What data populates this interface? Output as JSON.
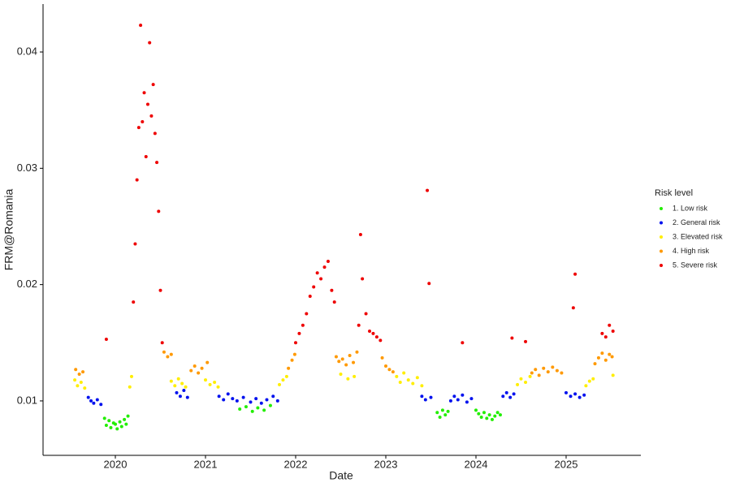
{
  "chart_data": {
    "type": "scatter",
    "x_label": "Date",
    "y_label": "FRM@Romania",
    "legend_title": "Risk level",
    "legend_position": "right",
    "grid": false,
    "xlim": [
      2019.198,
      2025.829
    ],
    "xticks": [
      2020,
      2021,
      2022,
      2023,
      2024,
      2025
    ],
    "ylim": [
      0.00532,
      0.04412
    ],
    "yticks": [
      0.01,
      0.02,
      0.03,
      0.04
    ],
    "series": [
      {
        "name": "1. Low risk",
        "color": "#22ee00",
        "x": [
          2019.88,
          2019.9,
          2019.93,
          2019.95,
          2019.98,
          2020.0,
          2020.02,
          2020.05,
          2020.07,
          2020.1,
          2020.12,
          2020.14,
          2021.38,
          2021.45,
          2021.52,
          2021.58,
          2021.65,
          2021.72,
          2023.57,
          2023.6,
          2023.63,
          2023.66,
          2023.69,
          2024.0,
          2024.03,
          2024.06,
          2024.09,
          2024.12,
          2024.15,
          2024.18,
          2024.21,
          2024.24,
          2024.27
        ],
        "values": [
          0.0085,
          0.0079,
          0.0083,
          0.0077,
          0.0081,
          0.008,
          0.0076,
          0.0082,
          0.0078,
          0.0084,
          0.008,
          0.0087,
          0.0093,
          0.0095,
          0.0091,
          0.0094,
          0.0092,
          0.0096,
          0.009,
          0.0086,
          0.0092,
          0.0088,
          0.0091,
          0.0092,
          0.0089,
          0.0086,
          0.009,
          0.0085,
          0.0088,
          0.0084,
          0.0087,
          0.009,
          0.0088
        ]
      },
      {
        "name": "2. General risk",
        "color": "#0011ee",
        "x": [
          2019.7,
          2019.73,
          2019.76,
          2019.8,
          2019.84,
          2020.68,
          2020.72,
          2020.76,
          2020.8,
          2021.15,
          2021.2,
          2021.25,
          2021.3,
          2021.35,
          2021.42,
          2021.5,
          2021.56,
          2021.62,
          2021.68,
          2021.75,
          2021.8,
          2023.4,
          2023.44,
          2023.5,
          2023.72,
          2023.76,
          2023.8,
          2023.85,
          2023.9,
          2023.95,
          2024.3,
          2024.34,
          2024.38,
          2024.42,
          2025.0,
          2025.05,
          2025.1,
          2025.15,
          2025.2
        ],
        "values": [
          0.0103,
          0.01,
          0.0098,
          0.0101,
          0.0097,
          0.0107,
          0.0104,
          0.0109,
          0.0103,
          0.0104,
          0.0101,
          0.0106,
          0.0102,
          0.01,
          0.0103,
          0.0099,
          0.0102,
          0.0098,
          0.0101,
          0.0104,
          0.01,
          0.0104,
          0.0101,
          0.0103,
          0.01,
          0.0104,
          0.0101,
          0.0105,
          0.0099,
          0.0102,
          0.0104,
          0.0107,
          0.0103,
          0.0106,
          0.0107,
          0.0104,
          0.0106,
          0.0103,
          0.0105
        ]
      },
      {
        "name": "3. Elevated risk",
        "color": "#ffee00",
        "x": [
          2019.55,
          2019.58,
          2019.62,
          2019.66,
          2020.16,
          2020.18,
          2020.62,
          2020.66,
          2020.7,
          2020.74,
          2020.78,
          2021.0,
          2021.05,
          2021.1,
          2021.14,
          2021.82,
          2021.86,
          2021.9,
          2022.5,
          2022.58,
          2022.65,
          2023.12,
          2023.16,
          2023.2,
          2023.25,
          2023.3,
          2023.35,
          2023.4,
          2024.46,
          2024.5,
          2024.55,
          2024.6,
          2025.22,
          2025.26,
          2025.3,
          2025.52
        ],
        "values": [
          0.0118,
          0.0113,
          0.0116,
          0.0111,
          0.0112,
          0.0121,
          0.0117,
          0.0113,
          0.0119,
          0.0115,
          0.0112,
          0.0118,
          0.0114,
          0.0116,
          0.0112,
          0.0114,
          0.0118,
          0.0121,
          0.0123,
          0.0119,
          0.0121,
          0.0121,
          0.0116,
          0.0124,
          0.0118,
          0.0115,
          0.012,
          0.0113,
          0.0114,
          0.0119,
          0.0116,
          0.0121,
          0.0113,
          0.0117,
          0.0119,
          0.0122
        ]
      },
      {
        "name": "4. High risk",
        "color": "#ff9900",
        "x": [
          2019.56,
          2019.6,
          2019.64,
          2020.54,
          2020.58,
          2020.62,
          2020.84,
          2020.88,
          2020.92,
          2020.96,
          2021.02,
          2021.92,
          2021.96,
          2021.99,
          2022.45,
          2022.48,
          2022.52,
          2022.56,
          2022.6,
          2022.64,
          2022.68,
          2022.96,
          2023.0,
          2023.04,
          2023.08,
          2024.62,
          2024.66,
          2024.7,
          2024.75,
          2024.8,
          2024.85,
          2024.9,
          2024.95,
          2025.32,
          2025.36,
          2025.4,
          2025.44,
          2025.48,
          2025.51
        ],
        "values": [
          0.0127,
          0.0123,
          0.0125,
          0.0142,
          0.0138,
          0.014,
          0.0126,
          0.013,
          0.0124,
          0.0128,
          0.0133,
          0.0128,
          0.0135,
          0.014,
          0.0138,
          0.0134,
          0.0136,
          0.0131,
          0.0139,
          0.0133,
          0.0142,
          0.0137,
          0.013,
          0.0127,
          0.0125,
          0.0124,
          0.0127,
          0.0122,
          0.0128,
          0.0125,
          0.0129,
          0.0126,
          0.0124,
          0.0132,
          0.0137,
          0.0141,
          0.0135,
          0.014,
          0.0138
        ]
      },
      {
        "name": "5. Severe risk",
        "color": "#ee0000",
        "x": [
          2019.9,
          2020.2,
          2020.22,
          2020.24,
          2020.26,
          2020.28,
          2020.3,
          2020.32,
          2020.34,
          2020.36,
          2020.38,
          2020.4,
          2020.42,
          2020.44,
          2020.46,
          2020.48,
          2020.5,
          2020.52,
          2022.0,
          2022.04,
          2022.08,
          2022.12,
          2022.16,
          2022.2,
          2022.24,
          2022.28,
          2022.32,
          2022.36,
          2022.4,
          2022.43,
          2022.7,
          2022.72,
          2022.74,
          2022.78,
          2022.82,
          2022.86,
          2022.9,
          2022.94,
          2023.46,
          2023.48,
          2023.85,
          2024.4,
          2024.55,
          2025.08,
          2025.1,
          2025.4,
          2025.44,
          2025.48,
          2025.52
        ],
        "values": [
          0.0153,
          0.0185,
          0.0235,
          0.029,
          0.0335,
          0.0423,
          0.034,
          0.0365,
          0.031,
          0.0355,
          0.0408,
          0.0345,
          0.0372,
          0.033,
          0.0305,
          0.0263,
          0.0195,
          0.015,
          0.015,
          0.0158,
          0.0165,
          0.0175,
          0.019,
          0.0198,
          0.021,
          0.0205,
          0.0215,
          0.022,
          0.0195,
          0.0185,
          0.0165,
          0.0243,
          0.0205,
          0.0175,
          0.016,
          0.0158,
          0.0155,
          0.0152,
          0.0281,
          0.0201,
          0.015,
          0.0154,
          0.0151,
          0.018,
          0.0209,
          0.0158,
          0.0155,
          0.0165,
          0.016
        ]
      }
    ]
  }
}
